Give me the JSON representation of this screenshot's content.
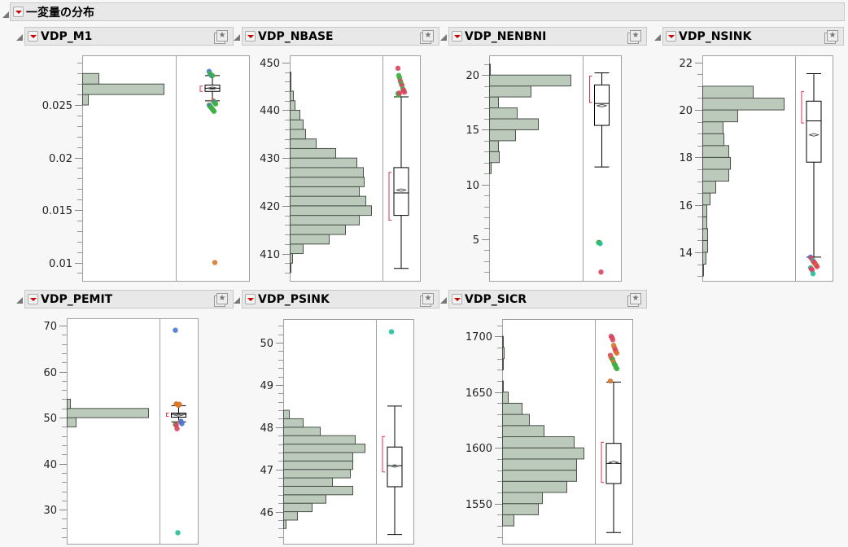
{
  "report": {
    "title": "一変量の分布"
  },
  "colors": {
    "bar_fill": "#bbcabb",
    "bar_stroke": "#4a524a",
    "shortest_half": "#e0304a",
    "green": "#3cb043",
    "red": "#d9455f",
    "blue": "#4a74d9",
    "orange": "#d8782a",
    "teal": "#20c09a"
  },
  "chart_data": [
    {
      "type": "histogram+boxplot",
      "title": "VDP_M1",
      "ylim": [
        0.00826,
        0.02973
      ],
      "major_ticks": [
        0.01,
        0.015,
        0.02,
        0.025
      ],
      "tick_labels": [
        "0.01",
        "0.015",
        "0.02",
        "0.025"
      ],
      "minor_step": 0.001,
      "bins": [
        {
          "lo": 0.025,
          "hi": 0.026,
          "rel": 7
        },
        {
          "lo": 0.026,
          "hi": 0.027,
          "rel": 100
        },
        {
          "lo": 0.027,
          "hi": 0.028,
          "rel": 20
        }
      ],
      "box": {
        "q1": 0.0263,
        "median": 0.0266,
        "q3": 0.0269,
        "whisker_low": 0.0254,
        "whisker_high": 0.0278,
        "mean": 0.0266,
        "shortest_half": [
          0.0263,
          0.0268
        ]
      },
      "outliers": [
        [
          0.0282,
          "blue"
        ],
        [
          0.028,
          "green"
        ],
        [
          0.0279,
          "green"
        ],
        [
          0.0278,
          "blue"
        ],
        [
          0.0278,
          "green"
        ],
        [
          0.0254,
          "orange"
        ],
        [
          0.0253,
          "blue"
        ],
        [
          0.0252,
          "green"
        ],
        [
          0.0251,
          "green"
        ],
        [
          0.025,
          "green"
        ],
        [
          0.0249,
          "blue"
        ],
        [
          0.0248,
          "green"
        ],
        [
          0.0247,
          "green"
        ],
        [
          0.0246,
          "green"
        ],
        [
          0.0245,
          "green"
        ],
        [
          0.0244,
          "green"
        ],
        [
          0.01,
          "orange"
        ]
      ]
    },
    {
      "type": "histogram+boxplot",
      "title": "VDP_NBASE",
      "ylim": [
        404.3,
        451.5
      ],
      "major_ticks": [
        410,
        420,
        430,
        440,
        450
      ],
      "tick_labels": [
        "410",
        "420",
        "430",
        "440",
        "450"
      ],
      "minor_step": 2,
      "bins": [
        {
          "lo": 406,
          "hi": 408,
          "rel": 1
        },
        {
          "lo": 408,
          "hi": 410,
          "rel": 3
        },
        {
          "lo": 410,
          "hi": 412,
          "rel": 16
        },
        {
          "lo": 412,
          "hi": 414,
          "rel": 48
        },
        {
          "lo": 414,
          "hi": 416,
          "rel": 68
        },
        {
          "lo": 416,
          "hi": 418,
          "rel": 85
        },
        {
          "lo": 418,
          "hi": 420,
          "rel": 100
        },
        {
          "lo": 420,
          "hi": 422,
          "rel": 93
        },
        {
          "lo": 422,
          "hi": 424,
          "rel": 85
        },
        {
          "lo": 424,
          "hi": 426,
          "rel": 91
        },
        {
          "lo": 426,
          "hi": 428,
          "rel": 90
        },
        {
          "lo": 428,
          "hi": 430,
          "rel": 82
        },
        {
          "lo": 430,
          "hi": 432,
          "rel": 56
        },
        {
          "lo": 432,
          "hi": 434,
          "rel": 32
        },
        {
          "lo": 434,
          "hi": 436,
          "rel": 19
        },
        {
          "lo": 436,
          "hi": 438,
          "rel": 16
        },
        {
          "lo": 438,
          "hi": 440,
          "rel": 12
        },
        {
          "lo": 440,
          "hi": 442,
          "rel": 6
        },
        {
          "lo": 442,
          "hi": 444,
          "rel": 4
        },
        {
          "lo": 444,
          "hi": 446,
          "rel": 1
        },
        {
          "lo": 446,
          "hi": 448,
          "rel": 1
        }
      ],
      "box": {
        "q1": 418,
        "median": 422.7,
        "q3": 428,
        "whisker_low": 406.9,
        "whisker_high": 442.8,
        "mean": 423.3,
        "shortest_half": [
          417,
          427
        ]
      },
      "outliers": [
        [
          448.8,
          "red"
        ],
        [
          447.3,
          "green"
        ],
        [
          446.8,
          "green"
        ],
        [
          446.1,
          "red"
        ],
        [
          445.6,
          "green"
        ],
        [
          445.2,
          "red"
        ],
        [
          444.5,
          "green"
        ],
        [
          444.2,
          "red"
        ],
        [
          443.8,
          "red"
        ],
        [
          443.5,
          "green"
        ],
        [
          443.2,
          "green"
        ],
        [
          443.6,
          "red"
        ]
      ]
    },
    {
      "type": "histogram+boxplot",
      "title": "VDP_NENBNI",
      "ylim": [
        1.2,
        21.8
      ],
      "major_ticks": [
        5,
        10,
        15,
        20
      ],
      "tick_labels": [
        "5",
        "10",
        "15",
        "20"
      ],
      "minor_step": 1,
      "bins": [
        {
          "lo": 11,
          "hi": 12,
          "rel": 2
        },
        {
          "lo": 12,
          "hi": 13,
          "rel": 12
        },
        {
          "lo": 13,
          "hi": 14,
          "rel": 11
        },
        {
          "lo": 14,
          "hi": 15,
          "rel": 32
        },
        {
          "lo": 15,
          "hi": 16,
          "rel": 60
        },
        {
          "lo": 16,
          "hi": 17,
          "rel": 34
        },
        {
          "lo": 17,
          "hi": 18,
          "rel": 11
        },
        {
          "lo": 18,
          "hi": 19,
          "rel": 51
        },
        {
          "lo": 19,
          "hi": 20,
          "rel": 100
        },
        {
          "lo": 20,
          "hi": 21,
          "rel": 1
        }
      ],
      "box": {
        "q1": 15.4,
        "median": 17.4,
        "q3": 19.1,
        "whisker_low": 11.6,
        "whisker_high": 20.2,
        "mean": 17.2,
        "shortest_half": [
          17.5,
          19.9
        ]
      },
      "outliers": [
        [
          4.7,
          "green"
        ],
        [
          4.7,
          "green"
        ],
        [
          4.6,
          "teal"
        ],
        [
          2.0,
          "red"
        ]
      ]
    },
    {
      "type": "histogram+boxplot",
      "title": "VDP_NSINK",
      "ylim": [
        12.8,
        22.3
      ],
      "major_ticks": [
        14,
        16,
        18,
        20,
        22
      ],
      "tick_labels": [
        "14",
        "16",
        "18",
        "20",
        "22"
      ],
      "minor_step": 0.5,
      "bins": [
        {
          "lo": 13,
          "hi": 13.5,
          "rel": 1
        },
        {
          "lo": 13.5,
          "hi": 14,
          "rel": 4
        },
        {
          "lo": 14,
          "hi": 14.5,
          "rel": 6
        },
        {
          "lo": 14.5,
          "hi": 15,
          "rel": 6
        },
        {
          "lo": 15,
          "hi": 15.5,
          "rel": 5
        },
        {
          "lo": 15.5,
          "hi": 16,
          "rel": 5
        },
        {
          "lo": 16,
          "hi": 16.5,
          "rel": 9
        },
        {
          "lo": 16.5,
          "hi": 17,
          "rel": 16
        },
        {
          "lo": 17,
          "hi": 17.5,
          "rel": 32
        },
        {
          "lo": 17.5,
          "hi": 18,
          "rel": 34
        },
        {
          "lo": 18,
          "hi": 18.5,
          "rel": 32
        },
        {
          "lo": 18.5,
          "hi": 19,
          "rel": 26
        },
        {
          "lo": 19,
          "hi": 19.5,
          "rel": 25
        },
        {
          "lo": 19.5,
          "hi": 20,
          "rel": 43
        },
        {
          "lo": 20,
          "hi": 20.5,
          "rel": 100
        },
        {
          "lo": 20.5,
          "hi": 21,
          "rel": 62
        }
      ],
      "box": {
        "q1": 17.8,
        "median": 19.54,
        "q3": 20.37,
        "whisker_low": 13.8,
        "whisker_high": 21.53,
        "mean": 18.95,
        "shortest_half": [
          19.45,
          20.78
        ]
      },
      "outliers": [
        [
          13.8,
          "blue"
        ],
        [
          13.75,
          "red"
        ],
        [
          13.7,
          "red"
        ],
        [
          13.65,
          "teal"
        ],
        [
          13.6,
          "red"
        ],
        [
          13.55,
          "red"
        ],
        [
          13.5,
          "red"
        ],
        [
          13.45,
          "orange"
        ],
        [
          13.4,
          "red"
        ],
        [
          13.35,
          "teal"
        ],
        [
          13.3,
          "red"
        ],
        [
          13.25,
          "red"
        ],
        [
          13.1,
          "teal"
        ]
      ]
    },
    {
      "type": "histogram+boxplot",
      "title": "VDP_PEMIT",
      "ylim": [
        22.6,
        71.6
      ],
      "major_ticks": [
        30,
        40,
        50,
        60,
        70
      ],
      "tick_labels": [
        "30",
        "40",
        "50",
        "60",
        "70"
      ],
      "minor_step": 2,
      "bins": [
        {
          "lo": 48,
          "hi": 50,
          "rel": 11
        },
        {
          "lo": 50,
          "hi": 52,
          "rel": 100
        },
        {
          "lo": 52,
          "hi": 54,
          "rel": 4
        }
      ],
      "box": {
        "q1": 50.1,
        "median": 50.7,
        "q3": 51.0,
        "whisker_low": 49.1,
        "whisker_high": 52.6,
        "mean": 50.6,
        "shortest_half": [
          50.3,
          51.0
        ]
      },
      "outliers": [
        [
          69,
          "blue"
        ],
        [
          53.0,
          "orange"
        ],
        [
          52.9,
          "orange"
        ],
        [
          52.8,
          "orange"
        ],
        [
          52.7,
          "orange"
        ],
        [
          52.9,
          "orange"
        ],
        [
          49.1,
          "orange"
        ],
        [
          49.2,
          "blue"
        ],
        [
          48.7,
          "blue"
        ],
        [
          48.5,
          "green"
        ],
        [
          48.4,
          "red"
        ],
        [
          47.6,
          "red"
        ],
        [
          25,
          "teal"
        ]
      ]
    },
    {
      "type": "histogram+boxplot",
      "title": "VDP_PSINK",
      "ylim": [
        45.24,
        50.56
      ],
      "major_ticks": [
        46,
        47,
        48,
        49,
        50
      ],
      "tick_labels": [
        "46",
        "47",
        "48",
        "49",
        "50"
      ],
      "minor_step": 0.2,
      "bins": [
        {
          "lo": 45.6,
          "hi": 45.8,
          "rel": 3
        },
        {
          "lo": 45.8,
          "hi": 46.0,
          "rel": 17
        },
        {
          "lo": 46.0,
          "hi": 46.2,
          "rel": 35
        },
        {
          "lo": 46.2,
          "hi": 46.4,
          "rel": 52
        },
        {
          "lo": 46.4,
          "hi": 46.6,
          "rel": 85
        },
        {
          "lo": 46.6,
          "hi": 46.8,
          "rel": 60
        },
        {
          "lo": 46.8,
          "hi": 47.0,
          "rel": 82
        },
        {
          "lo": 47.0,
          "hi": 47.2,
          "rel": 85
        },
        {
          "lo": 47.2,
          "hi": 47.4,
          "rel": 85
        },
        {
          "lo": 47.4,
          "hi": 47.6,
          "rel": 100
        },
        {
          "lo": 47.6,
          "hi": 47.8,
          "rel": 88
        },
        {
          "lo": 47.8,
          "hi": 48.0,
          "rel": 45
        },
        {
          "lo": 48.0,
          "hi": 48.2,
          "rel": 24
        },
        {
          "lo": 48.2,
          "hi": 48.4,
          "rel": 7
        }
      ],
      "box": {
        "q1": 46.59,
        "median": 47.09,
        "q3": 47.53,
        "whisker_low": 45.46,
        "whisker_high": 48.5,
        "mean": 47.08,
        "shortest_half": [
          46.94,
          47.78
        ]
      },
      "outliers": [
        [
          50.26,
          "teal"
        ]
      ]
    },
    {
      "type": "histogram+boxplot",
      "title": "VDP_SICR",
      "ylim": [
        1514,
        1715.5
      ],
      "major_ticks": [
        1550,
        1600,
        1650,
        1700
      ],
      "tick_labels": [
        "1550",
        "1600",
        "1650",
        "1700"
      ],
      "minor_step": 10,
      "bins": [
        {
          "lo": 1530,
          "hi": 1540,
          "rel": 14
        },
        {
          "lo": 1540,
          "hi": 1550,
          "rel": 44
        },
        {
          "lo": 1550,
          "hi": 1560,
          "rel": 49
        },
        {
          "lo": 1560,
          "hi": 1570,
          "rel": 79
        },
        {
          "lo": 1570,
          "hi": 1580,
          "rel": 91
        },
        {
          "lo": 1580,
          "hi": 1590,
          "rel": 91
        },
        {
          "lo": 1590,
          "hi": 1600,
          "rel": 100
        },
        {
          "lo": 1600,
          "hi": 1610,
          "rel": 88
        },
        {
          "lo": 1610,
          "hi": 1620,
          "rel": 51
        },
        {
          "lo": 1620,
          "hi": 1630,
          "rel": 33
        },
        {
          "lo": 1630,
          "hi": 1640,
          "rel": 24
        },
        {
          "lo": 1640,
          "hi": 1650,
          "rel": 7
        },
        {
          "lo": 1650,
          "hi": 1660,
          "rel": 1
        },
        {
          "lo": 1670,
          "hi": 1680,
          "rel": 1
        },
        {
          "lo": 1680,
          "hi": 1690,
          "rel": 2
        },
        {
          "lo": 1690,
          "hi": 1700,
          "rel": 1
        }
      ],
      "box": {
        "q1": 1568,
        "median": 1586,
        "q3": 1604,
        "whisker_low": 1524,
        "whisker_high": 1659,
        "mean": 1587,
        "shortest_half": [
          1569,
          1605
        ]
      },
      "outliers": [
        [
          1660,
          "orange"
        ],
        [
          1700,
          "red"
        ],
        [
          1699,
          "red"
        ],
        [
          1697,
          "red"
        ],
        [
          1692,
          "orange"
        ],
        [
          1690,
          "orange"
        ],
        [
          1688,
          "red"
        ],
        [
          1686,
          "red"
        ],
        [
          1685,
          "orange"
        ],
        [
          1683,
          "red"
        ],
        [
          1681,
          "orange"
        ],
        [
          1680,
          "red"
        ],
        [
          1679,
          "green"
        ],
        [
          1677,
          "orange"
        ],
        [
          1675,
          "green"
        ],
        [
          1674,
          "green"
        ],
        [
          1672,
          "green"
        ],
        [
          1671,
          "green"
        ]
      ]
    }
  ]
}
